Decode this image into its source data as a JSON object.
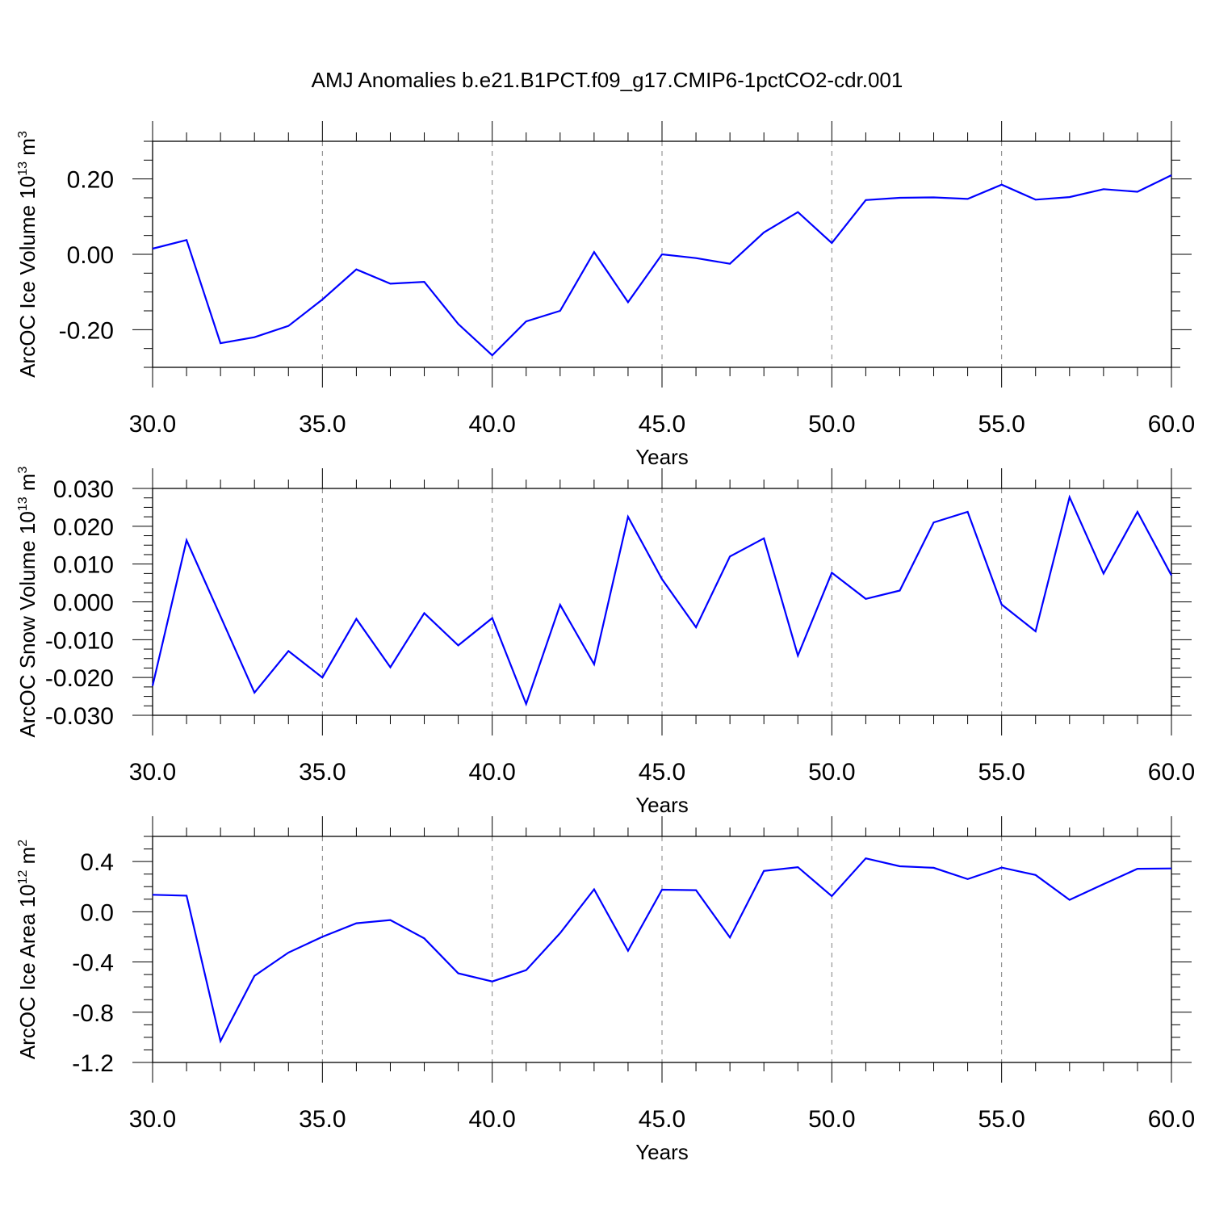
{
  "title": "AMJ Anomalies b.e21.B1PCT.f09_g17.CMIP6-1pctCO2-cdr.001",
  "colors": {
    "series": "#0000ff",
    "axis": "#000000",
    "grid": "#808080"
  },
  "chart_data": [
    {
      "type": "line",
      "ylabel_main": "ArcOC Ice Volume 10",
      "ylabel_exp": "13",
      "ylabel_unit": " m",
      "ylabel_unit_exp": "3",
      "xlabel": "Years",
      "xlim": [
        30,
        60
      ],
      "ylim": [
        -0.3,
        0.3
      ],
      "x_ticks": [
        "30.0",
        "35.0",
        "40.0",
        "45.0",
        "50.0",
        "55.0",
        "60.0"
      ],
      "y_ticks": [
        "-0.20",
        "0.00",
        "0.20"
      ],
      "grid": "vertical dashed at major x ticks",
      "x": [
        30,
        31,
        32,
        33,
        34,
        35,
        36,
        37,
        38,
        39,
        40,
        41,
        42,
        43,
        44,
        45,
        46,
        47,
        48,
        49,
        50,
        51,
        52,
        53,
        54,
        55,
        56,
        57,
        58,
        59,
        60
      ],
      "values": [
        0.015,
        0.038,
        -0.236,
        -0.22,
        -0.19,
        -0.12,
        -0.04,
        -0.078,
        -0.073,
        -0.185,
        -0.268,
        -0.178,
        -0.15,
        0.006,
        -0.127,
        0.0,
        -0.01,
        -0.025,
        0.058,
        0.112,
        0.03,
        0.144,
        0.15,
        0.151,
        0.147,
        0.185,
        0.145,
        0.152,
        0.173,
        0.166,
        0.21
      ]
    },
    {
      "type": "line",
      "ylabel_main": "ArcOC Snow Volume 10",
      "ylabel_exp": "13",
      "ylabel_unit": " m",
      "ylabel_unit_exp": "3",
      "xlabel": "Years",
      "xlim": [
        30,
        60
      ],
      "ylim": [
        -0.03,
        0.03
      ],
      "x_ticks": [
        "30.0",
        "35.0",
        "40.0",
        "45.0",
        "50.0",
        "55.0",
        "60.0"
      ],
      "y_ticks": [
        "-0.030",
        "-0.020",
        "-0.010",
        "0.000",
        "0.010",
        "0.020",
        "0.030"
      ],
      "grid": "vertical dashed at major x ticks",
      "x": [
        30,
        31,
        32,
        33,
        34,
        35,
        36,
        37,
        38,
        39,
        40,
        41,
        42,
        43,
        44,
        45,
        46,
        47,
        48,
        49,
        50,
        51,
        52,
        53,
        54,
        55,
        56,
        57,
        58,
        59,
        60
      ],
      "values": [
        -0.0222,
        0.0163,
        -0.0038,
        -0.024,
        -0.013,
        -0.02,
        -0.0045,
        -0.0173,
        -0.003,
        -0.0115,
        -0.0043,
        -0.027,
        -0.0008,
        -0.0165,
        0.0225,
        0.006,
        -0.0067,
        0.012,
        0.0168,
        -0.0142,
        0.0077,
        0.0008,
        0.003,
        0.021,
        0.0238,
        -0.0007,
        -0.0078,
        0.0277,
        0.0075,
        0.0238,
        0.007
      ]
    },
    {
      "type": "line",
      "ylabel_main": "ArcOC Ice Area 10",
      "ylabel_exp": "12",
      "ylabel_unit": " m",
      "ylabel_unit_exp": "2",
      "xlabel": "Years",
      "xlim": [
        30,
        60
      ],
      "ylim": [
        -1.2,
        0.6
      ],
      "x_ticks": [
        "30.0",
        "35.0",
        "40.0",
        "45.0",
        "50.0",
        "55.0",
        "60.0"
      ],
      "y_ticks": [
        "-1.2",
        "-0.8",
        "-0.4",
        "0.0",
        "0.4"
      ],
      "grid": "vertical dashed at major x ticks",
      "x": [
        30,
        31,
        32,
        33,
        34,
        35,
        36,
        37,
        38,
        39,
        40,
        41,
        42,
        43,
        44,
        45,
        46,
        47,
        48,
        49,
        50,
        51,
        52,
        53,
        54,
        55,
        56,
        57,
        58,
        59,
        60
      ],
      "values": [
        0.135,
        0.128,
        -1.03,
        -0.51,
        -0.325,
        -0.2,
        -0.092,
        -0.066,
        -0.212,
        -0.49,
        -0.555,
        -0.465,
        -0.17,
        0.178,
        -0.31,
        0.176,
        0.172,
        -0.205,
        0.325,
        0.355,
        0.124,
        0.425,
        0.362,
        0.35,
        0.26,
        0.352,
        0.293,
        0.095,
        0.22,
        0.342,
        0.345
      ]
    }
  ]
}
